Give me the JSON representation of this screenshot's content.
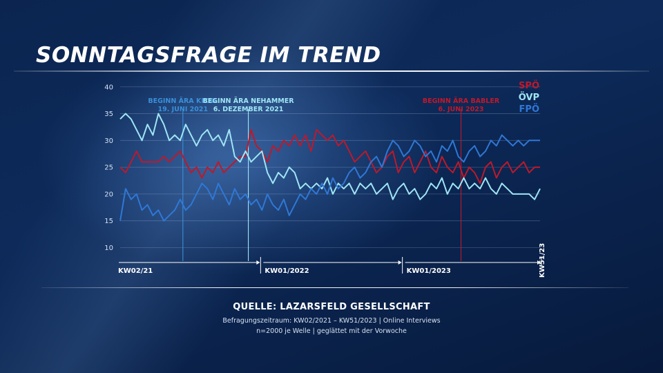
{
  "title": "SONNTAGSFRAGE IM TREND",
  "source": {
    "title": "QUELLE:  LAZARSFELD GESELLSCHAFT",
    "line1": "Befragungszeitraum: KW02/2021 – KW51/2023 | Online Interviews",
    "line2": "n=2000 je Welle | geglättet mit der Vorwoche"
  },
  "colors": {
    "SPÖ": "#c0182a",
    "ÖVP": "#9fe6f5",
    "FPÖ": "#2f78d6"
  },
  "chart_data": {
    "type": "line",
    "x_range": [
      1,
      155
    ],
    "x_unit": "week index from KW02/21",
    "ylim": [
      8,
      41
    ],
    "yticks": [
      10,
      15,
      20,
      25,
      30,
      35,
      40
    ],
    "legend": [
      "SPÖ",
      "ÖVP",
      "FPÖ"
    ],
    "legend_placement": "top-right",
    "grid": "horizontal",
    "x_markers": [
      {
        "label": "KW02/21",
        "x": 1
      },
      {
        "label": "KW01/2022",
        "x": 52
      },
      {
        "label": "KW01/2023",
        "x": 104
      },
      {
        "label": "KW51/23",
        "x": 155
      }
    ],
    "events": [
      {
        "line1": "BEGINN ÄRA KICKL",
        "line2": "19. JUNI 2021",
        "x": 24,
        "color": "#3a8fd8"
      },
      {
        "line1": "BEGINN ÄRA NEHAMMER",
        "line2": "6. DEZEMBER 2021",
        "x": 48,
        "color": "#9fe6f5"
      },
      {
        "line1": "BEGINN ÄRA BABLER",
        "line2": "6. JUNI 2023",
        "x": 126,
        "color": "#c0182a"
      }
    ],
    "series": [
      {
        "name": "SPÖ",
        "values": [
          [
            1,
            25
          ],
          [
            3,
            24
          ],
          [
            5,
            26
          ],
          [
            7,
            28
          ],
          [
            9,
            26
          ],
          [
            11,
            26
          ],
          [
            13,
            26
          ],
          [
            15,
            26
          ],
          [
            17,
            27
          ],
          [
            19,
            26
          ],
          [
            21,
            27
          ],
          [
            23,
            28
          ],
          [
            25,
            26
          ],
          [
            27,
            24
          ],
          [
            29,
            25
          ],
          [
            31,
            23
          ],
          [
            33,
            25
          ],
          [
            35,
            24
          ],
          [
            37,
            26
          ],
          [
            39,
            24
          ],
          [
            41,
            25
          ],
          [
            43,
            26
          ],
          [
            45,
            27
          ],
          [
            47,
            27
          ],
          [
            49,
            32
          ],
          [
            51,
            29
          ],
          [
            53,
            28
          ],
          [
            55,
            26
          ],
          [
            57,
            29
          ],
          [
            59,
            28
          ],
          [
            61,
            30
          ],
          [
            63,
            29
          ],
          [
            65,
            31
          ],
          [
            67,
            29
          ],
          [
            69,
            31
          ],
          [
            71,
            28
          ],
          [
            73,
            32
          ],
          [
            75,
            31
          ],
          [
            77,
            30
          ],
          [
            79,
            31
          ],
          [
            81,
            29
          ],
          [
            83,
            30
          ],
          [
            85,
            28
          ],
          [
            87,
            26
          ],
          [
            89,
            27
          ],
          [
            91,
            28
          ],
          [
            93,
            26
          ],
          [
            95,
            24
          ],
          [
            97,
            25
          ],
          [
            99,
            27
          ],
          [
            101,
            28
          ],
          [
            103,
            24
          ],
          [
            105,
            26
          ],
          [
            107,
            27
          ],
          [
            109,
            24
          ],
          [
            111,
            26
          ],
          [
            113,
            28
          ],
          [
            115,
            25
          ],
          [
            117,
            24
          ],
          [
            119,
            27
          ],
          [
            121,
            25
          ],
          [
            123,
            24
          ],
          [
            125,
            26
          ],
          [
            127,
            23
          ],
          [
            129,
            25
          ],
          [
            131,
            24
          ],
          [
            133,
            22
          ],
          [
            135,
            25
          ],
          [
            137,
            26
          ],
          [
            139,
            23
          ],
          [
            141,
            25
          ],
          [
            143,
            26
          ],
          [
            145,
            24
          ],
          [
            147,
            25
          ],
          [
            149,
            26
          ],
          [
            151,
            24
          ],
          [
            153,
            25
          ],
          [
            155,
            25
          ]
        ]
      },
      {
        "name": "ÖVP",
        "values": [
          [
            1,
            34
          ],
          [
            3,
            35
          ],
          [
            5,
            34
          ],
          [
            7,
            32
          ],
          [
            9,
            30
          ],
          [
            11,
            33
          ],
          [
            13,
            31
          ],
          [
            15,
            35
          ],
          [
            17,
            33
          ],
          [
            19,
            30
          ],
          [
            21,
            31
          ],
          [
            23,
            30
          ],
          [
            25,
            33
          ],
          [
            27,
            31
          ],
          [
            29,
            29
          ],
          [
            31,
            31
          ],
          [
            33,
            32
          ],
          [
            35,
            30
          ],
          [
            37,
            31
          ],
          [
            39,
            29
          ],
          [
            41,
            32
          ],
          [
            43,
            27
          ],
          [
            45,
            26
          ],
          [
            47,
            28
          ],
          [
            49,
            26
          ],
          [
            51,
            27
          ],
          [
            53,
            28
          ],
          [
            55,
            24
          ],
          [
            57,
            22
          ],
          [
            59,
            24
          ],
          [
            61,
            23
          ],
          [
            63,
            25
          ],
          [
            65,
            24
          ],
          [
            67,
            21
          ],
          [
            69,
            22
          ],
          [
            71,
            21
          ],
          [
            73,
            22
          ],
          [
            75,
            21
          ],
          [
            77,
            23
          ],
          [
            79,
            20
          ],
          [
            81,
            22
          ],
          [
            83,
            21
          ],
          [
            85,
            22
          ],
          [
            87,
            20
          ],
          [
            89,
            22
          ],
          [
            91,
            21
          ],
          [
            93,
            22
          ],
          [
            95,
            20
          ],
          [
            97,
            21
          ],
          [
            99,
            22
          ],
          [
            101,
            19
          ],
          [
            103,
            21
          ],
          [
            105,
            22
          ],
          [
            107,
            20
          ],
          [
            109,
            21
          ],
          [
            111,
            19
          ],
          [
            113,
            20
          ],
          [
            115,
            22
          ],
          [
            117,
            21
          ],
          [
            119,
            23
          ],
          [
            121,
            20
          ],
          [
            123,
            22
          ],
          [
            125,
            21
          ],
          [
            127,
            23
          ],
          [
            129,
            21
          ],
          [
            131,
            22
          ],
          [
            133,
            21
          ],
          [
            135,
            23
          ],
          [
            137,
            21
          ],
          [
            139,
            20
          ],
          [
            141,
            22
          ],
          [
            143,
            21
          ],
          [
            145,
            20
          ],
          [
            147,
            20
          ],
          [
            149,
            20
          ],
          [
            151,
            20
          ],
          [
            153,
            19
          ],
          [
            155,
            21
          ]
        ]
      },
      {
        "name": "FPÖ",
        "values": [
          [
            1,
            15
          ],
          [
            3,
            21
          ],
          [
            5,
            19
          ],
          [
            7,
            20
          ],
          [
            9,
            17
          ],
          [
            11,
            18
          ],
          [
            13,
            16
          ],
          [
            15,
            17
          ],
          [
            17,
            15
          ],
          [
            19,
            16
          ],
          [
            21,
            17
          ],
          [
            23,
            19
          ],
          [
            25,
            17
          ],
          [
            27,
            18
          ],
          [
            29,
            20
          ],
          [
            31,
            22
          ],
          [
            33,
            21
          ],
          [
            35,
            19
          ],
          [
            37,
            22
          ],
          [
            39,
            20
          ],
          [
            41,
            18
          ],
          [
            43,
            21
          ],
          [
            45,
            19
          ],
          [
            47,
            20
          ],
          [
            49,
            18
          ],
          [
            51,
            19
          ],
          [
            53,
            17
          ],
          [
            55,
            20
          ],
          [
            57,
            18
          ],
          [
            59,
            17
          ],
          [
            61,
            19
          ],
          [
            63,
            16
          ],
          [
            65,
            18
          ],
          [
            67,
            20
          ],
          [
            69,
            19
          ],
          [
            71,
            21
          ],
          [
            73,
            20
          ],
          [
            75,
            22
          ],
          [
            77,
            20
          ],
          [
            79,
            23
          ],
          [
            81,
            21
          ],
          [
            83,
            22
          ],
          [
            85,
            24
          ],
          [
            87,
            25
          ],
          [
            89,
            23
          ],
          [
            91,
            24
          ],
          [
            93,
            26
          ],
          [
            95,
            27
          ],
          [
            97,
            25
          ],
          [
            99,
            28
          ],
          [
            101,
            30
          ],
          [
            103,
            29
          ],
          [
            105,
            27
          ],
          [
            107,
            28
          ],
          [
            109,
            30
          ],
          [
            111,
            29
          ],
          [
            113,
            27
          ],
          [
            115,
            28
          ],
          [
            117,
            26
          ],
          [
            119,
            29
          ],
          [
            121,
            28
          ],
          [
            123,
            30
          ],
          [
            125,
            27
          ],
          [
            127,
            26
          ],
          [
            129,
            28
          ],
          [
            131,
            29
          ],
          [
            133,
            27
          ],
          [
            135,
            28
          ],
          [
            137,
            30
          ],
          [
            139,
            29
          ],
          [
            141,
            31
          ],
          [
            143,
            30
          ],
          [
            145,
            29
          ],
          [
            147,
            30
          ],
          [
            149,
            29
          ],
          [
            151,
            30
          ],
          [
            153,
            30
          ],
          [
            155,
            30
          ]
        ]
      }
    ]
  }
}
